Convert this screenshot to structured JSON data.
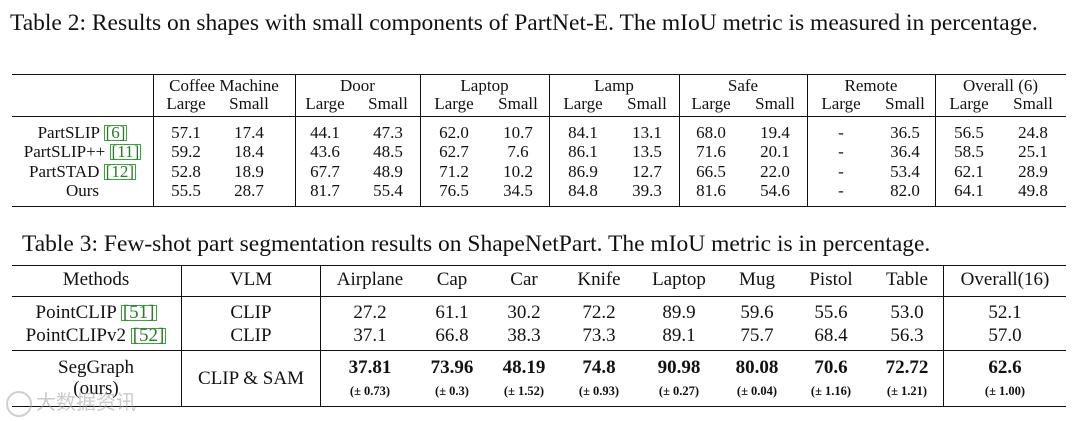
{
  "table2": {
    "caption": "Table 2: Results on shapes with small components of PartNet-E. The mIoU metric is measured in percentage.",
    "categories": [
      "Coffee Machine",
      "Door",
      "Laptop",
      "Lamp",
      "Safe",
      "Remote",
      "Overall (6)"
    ],
    "subheaders": [
      "Large",
      "Small"
    ],
    "rows": [
      {
        "method": "PartSLIP",
        "ref": "6",
        "values": [
          "57.1",
          "17.4",
          "44.1",
          "47.3",
          "62.0",
          "10.7",
          "84.1",
          "13.1",
          "68.0",
          "19.4",
          "-",
          "36.5",
          "56.5",
          "24.8"
        ]
      },
      {
        "method": "PartSLIP++",
        "ref": "11",
        "values": [
          "59.2",
          "18.4",
          "43.6",
          "48.5",
          "62.7",
          "7.6",
          "86.1",
          "13.5",
          "71.6",
          "20.1",
          "-",
          "36.4",
          "58.5",
          "25.1"
        ]
      },
      {
        "method": "PartSTAD",
        "ref": "12",
        "values": [
          "52.8",
          "18.9",
          "67.7",
          "48.9",
          "71.2",
          "10.2",
          "86.9",
          "12.7",
          "66.5",
          "22.0",
          "-",
          "53.4",
          "62.1",
          "28.9"
        ]
      },
      {
        "method": "Ours",
        "ref": "",
        "values": [
          "55.5",
          "28.7",
          "81.7",
          "55.4",
          "76.5",
          "34.5",
          "84.8",
          "39.3",
          "81.6",
          "54.6",
          "-",
          "82.0",
          "64.1",
          "49.8"
        ]
      }
    ]
  },
  "table3": {
    "caption": "Table 3: Few-shot part segmentation results on ShapeNetPart. The mIoU metric is in percentage.",
    "headers": [
      "Methods",
      "VLM",
      "Airplane",
      "Cap",
      "Car",
      "Knife",
      "Laptop",
      "Mug",
      "Pistol",
      "Table",
      "Overall(16)"
    ],
    "rows": [
      {
        "method": "PointCLIP",
        "ref": "51",
        "vlm": "CLIP",
        "values": [
          "27.2",
          "61.1",
          "30.2",
          "72.2",
          "89.9",
          "59.6",
          "55.6",
          "53.0",
          "52.1"
        ]
      },
      {
        "method": "PointCLIPv2",
        "ref": "52",
        "vlm": "CLIP",
        "values": [
          "37.1",
          "66.8",
          "38.3",
          "73.3",
          "89.1",
          "75.7",
          "68.4",
          "56.3",
          "57.0"
        ]
      }
    ],
    "ours": {
      "method_line1": "SegGraph",
      "method_line2": "(ours)",
      "vlm": "CLIP & SAM",
      "values": [
        "37.81",
        "73.96",
        "48.19",
        "74.8",
        "90.98",
        "80.08",
        "70.6",
        "72.72",
        "62.6"
      ],
      "std": [
        "(± 0.73)",
        "(± 0.3)",
        "(± 1.52)",
        "(± 0.93)",
        "(± 0.27)",
        "(± 0.04)",
        "(± 1.16)",
        "(± 1.21)",
        "(± 1.00)"
      ]
    }
  },
  "watermark": "大数据资讯"
}
